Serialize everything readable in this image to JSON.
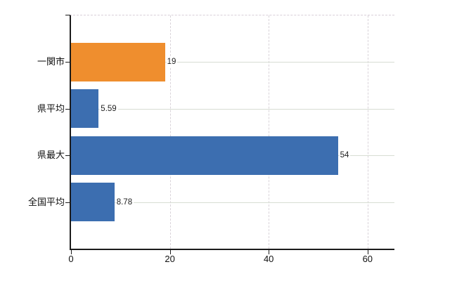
{
  "chart_data": {
    "type": "bar",
    "orientation": "horizontal",
    "title": "",
    "xlabel": "",
    "ylabel": "",
    "categories": [
      "一関市",
      "県平均",
      "県最大",
      "全国平均"
    ],
    "values": [
      19,
      5.59,
      54,
      8.78
    ],
    "value_labels": [
      "19",
      "5.59",
      "54",
      "8.78"
    ],
    "series": [
      {
        "name": "value",
        "values": [
          19,
          5.59,
          54,
          8.78
        ]
      }
    ],
    "bar_colors": [
      "#ef8e2e",
      "#3c6eb0",
      "#3c6eb0",
      "#3c6eb0"
    ],
    "highlight_color": "#ef8e2e",
    "base_color": "#3c6eb0",
    "x_ticks": [
      0,
      20,
      40,
      60
    ],
    "x_tick_labels": [
      "0",
      "20",
      "40",
      "60"
    ],
    "xlim": [
      0,
      65.4
    ],
    "legend": null,
    "grid": {
      "horizontal": "solid",
      "vertical": "dashed",
      "top_border": "dashed",
      "h_color": "#d7ddd3",
      "v_color": "#d9d3d9"
    },
    "axis_color": "#1b1b1b"
  }
}
